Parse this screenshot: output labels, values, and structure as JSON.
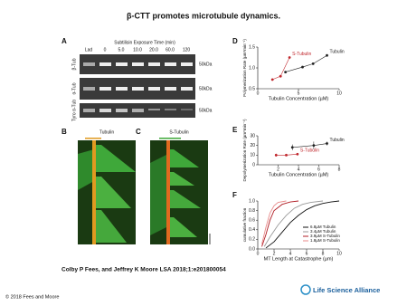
{
  "title": "β-CTT promotes microtubule dynamics.",
  "gel": {
    "label": "A",
    "header": "Subtilisin Exposure Time (min)",
    "lanes": [
      "Lad",
      "0",
      "5.0",
      "10.0",
      "20.0",
      "60.0",
      "120"
    ],
    "rows": [
      "β-Tub",
      "α-Tub",
      "Tyro α-Tub"
    ],
    "marker": "50kDa"
  },
  "kymographs": [
    {
      "label": "B",
      "title": "Tubulin"
    },
    {
      "label": "C",
      "title": "S-Tubulin"
    }
  ],
  "chart_data": [
    {
      "label": "D",
      "type": "scatter",
      "ylabel": "Polymerization Rate (µm*min⁻¹)",
      "xlabel": "Tubulin Concentration (µM)",
      "xlim": [
        0,
        10
      ],
      "ylim": [
        0.5,
        1.5
      ],
      "xticks": [
        0,
        5,
        10
      ],
      "yticks": [
        {
          "value": 0.5,
          "label": "0.5"
        },
        {
          "value": 1,
          "label": "1.0"
        },
        {
          "value": 1.5,
          "label": "1.5"
        }
      ],
      "series": [
        {
          "name": "S-Tubulin",
          "color": "#c0272d",
          "x": [
            1.8,
            2.8,
            3.9
          ],
          "values": [
            0.72,
            0.8,
            1.25
          ]
        },
        {
          "name": "Tubulin",
          "color": "#222222",
          "x": [
            3.4,
            5.5,
            6.8,
            8.5
          ],
          "values": [
            0.9,
            1.02,
            1.1,
            1.3
          ]
        }
      ]
    },
    {
      "label": "E",
      "type": "scatter",
      "ylabel": "Depolymerization Rate (µm*min⁻¹)",
      "xlabel": "Tubulin Concentration (µM)",
      "xlim": [
        0,
        8
      ],
      "ylim": [
        0,
        30
      ],
      "xticks": [
        2,
        4,
        6,
        8
      ],
      "yticks": [
        0,
        10,
        20,
        30
      ],
      "series": [
        {
          "name": "Tubulin",
          "color": "#222222",
          "x": [
            3.4,
            5.5,
            6.8
          ],
          "values": [
            18,
            20,
            22
          ],
          "errors": [
            3,
            4,
            2
          ]
        },
        {
          "name": "S-Tubulin",
          "color": "#c0272d",
          "x": [
            1.8,
            2.8,
            3.9
          ],
          "values": [
            10,
            10,
            11
          ],
          "errors": [
            1.5,
            1,
            1
          ]
        }
      ]
    },
    {
      "label": "F",
      "type": "line",
      "ylabel": "cumulative fraction",
      "xlabel": "MT Length at Catastrophe (µm)",
      "xlim": [
        0,
        10
      ],
      "ylim": [
        0,
        1
      ],
      "xticks": [
        0,
        2,
        4,
        6,
        8,
        10
      ],
      "yticks": [
        {
          "value": 0,
          "label": "0.0"
        },
        {
          "value": 0.2,
          "label": "0.2"
        },
        {
          "value": 0.4,
          "label": "0.4"
        },
        {
          "value": 0.6,
          "label": "0.6"
        },
        {
          "value": 0.8,
          "label": "0.8"
        },
        {
          "value": 1,
          "label": "1.0"
        }
      ],
      "legend": "lower right",
      "series": [
        {
          "name": "6.8µM Tubulin",
          "color": "#111111",
          "x": [
            1,
            2,
            3,
            4,
            5,
            6,
            7,
            8,
            9,
            10
          ],
          "values": [
            0.02,
            0.15,
            0.35,
            0.55,
            0.7,
            0.82,
            0.9,
            0.95,
            0.98,
            1
          ]
        },
        {
          "name": "3.4µM Tubulin",
          "color": "#999999",
          "x": [
            0.8,
            1.5,
            2.5,
            3.5,
            4.5,
            5.5,
            6.5,
            8
          ],
          "values": [
            0.05,
            0.25,
            0.5,
            0.7,
            0.85,
            0.93,
            0.97,
            1
          ]
        },
        {
          "name": "3.9µM S-Tubulin",
          "color": "#b01c24",
          "x": [
            0.5,
            1,
            1.5,
            2,
            3,
            4,
            5
          ],
          "values": [
            0.05,
            0.3,
            0.6,
            0.8,
            0.93,
            0.98,
            1
          ]
        },
        {
          "name": "1.8µM S-Tubulin",
          "color": "#e88a8a",
          "x": [
            0.5,
            1,
            1.5,
            2,
            2.5,
            3.5
          ],
          "values": [
            0.1,
            0.45,
            0.75,
            0.9,
            0.97,
            1
          ]
        }
      ]
    }
  ],
  "citation": "Colby P Fees, and Jeffrey K Moore LSA 2018;1:e201800054",
  "copyright": "© 2018 Fees and Moore",
  "journal": "Life Science Alliance"
}
